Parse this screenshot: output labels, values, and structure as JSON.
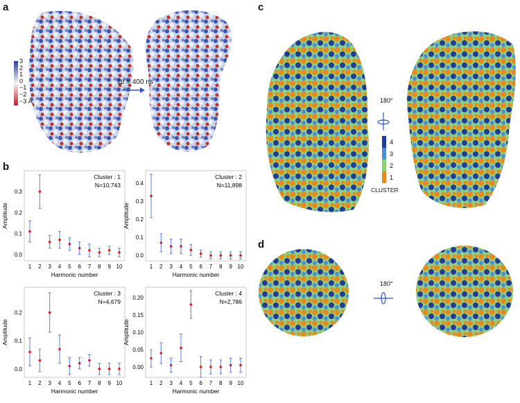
{
  "panels": {
    "a": "a",
    "b": "b",
    "c": "c",
    "d": "d"
  },
  "panel_a": {
    "colorbar_ticks": [
      "3",
      "2",
      "1",
      "0",
      "−1",
      "−2",
      "−3 Å"
    ],
    "arrow_label": "Δt = 400 ns"
  },
  "panel_c": {
    "rotation_label": "180°",
    "cluster_ticks": [
      "4",
      "3",
      "2",
      "1"
    ],
    "cluster_colors": [
      "#1f3c9a",
      "#4a90d9",
      "#8fd17a",
      "#e8891c"
    ],
    "cluster_title": "CLUSTER"
  },
  "panel_d": {
    "rotation_label": "180°"
  },
  "chart_data": [
    {
      "type": "scatter",
      "title": "Cluster : 1",
      "subtitle": "N=10,743",
      "xlabel": "Harmonic number",
      "ylabel": "Amplitude",
      "x": [
        1,
        2,
        3,
        4,
        5,
        6,
        7,
        8,
        9,
        10
      ],
      "y": [
        0.11,
        0.3,
        0.06,
        0.07,
        0.05,
        0.03,
        0.02,
        0.01,
        0.02,
        0.01
      ],
      "err": [
        0.05,
        0.08,
        0.03,
        0.04,
        0.03,
        0.03,
        0.03,
        0.02,
        0.02,
        0.02
      ],
      "ylim": [
        -0.03,
        0.4
      ],
      "yticks": [
        0.0,
        0.1,
        0.2,
        0.3
      ]
    },
    {
      "type": "scatter",
      "title": "Cluster : 2",
      "subtitle": "N=11,898",
      "xlabel": "Harmonic number",
      "ylabel": "Amplitude",
      "x": [
        1,
        2,
        3,
        4,
        5,
        6,
        7,
        8,
        9,
        10
      ],
      "y": [
        0.33,
        0.07,
        0.05,
        0.05,
        0.03,
        0.01,
        0.0,
        0.0,
        0.0,
        0.0
      ],
      "err": [
        0.12,
        0.05,
        0.04,
        0.04,
        0.03,
        0.02,
        0.02,
        0.02,
        0.02,
        0.02
      ],
      "ylim": [
        -0.03,
        0.47
      ],
      "yticks": [
        0.0,
        0.1,
        0.2,
        0.3,
        0.4
      ]
    },
    {
      "type": "scatter",
      "title": "Cluster : 3",
      "subtitle": "N=4,679",
      "xlabel": "Harmonic number",
      "ylabel": "Amplitude",
      "x": [
        1,
        2,
        3,
        4,
        5,
        6,
        7,
        8,
        9,
        10
      ],
      "y": [
        0.06,
        0.03,
        0.2,
        0.07,
        0.01,
        0.02,
        0.03,
        0.0,
        0.0,
        0.0
      ],
      "err": [
        0.05,
        0.04,
        0.07,
        0.05,
        0.03,
        0.02,
        0.02,
        0.02,
        0.02,
        0.02
      ],
      "ylim": [
        -0.03,
        0.29
      ],
      "yticks": [
        0.0,
        0.1,
        0.2
      ]
    },
    {
      "type": "scatter",
      "title": "Cluster : 4",
      "subtitle": "N=2,786",
      "xlabel": "Harmonic number",
      "ylabel": "Amplitude",
      "x": [
        1,
        2,
        3,
        4,
        5,
        6,
        7,
        8,
        9,
        10
      ],
      "y": [
        0.025,
        0.04,
        0.005,
        0.055,
        0.18,
        0.0,
        0.0,
        0.0,
        0.005,
        0.005
      ],
      "err": [
        0.025,
        0.03,
        0.02,
        0.04,
        0.04,
        0.03,
        0.02,
        0.02,
        0.02,
        0.02
      ],
      "ylim": [
        -0.03,
        0.23
      ],
      "yticks": [
        0.0,
        0.05,
        0.1,
        0.15,
        0.2
      ],
      "ytick_labels": [
        "0.00",
        "0.05",
        "0.10",
        "0.15",
        "0.20"
      ]
    }
  ]
}
